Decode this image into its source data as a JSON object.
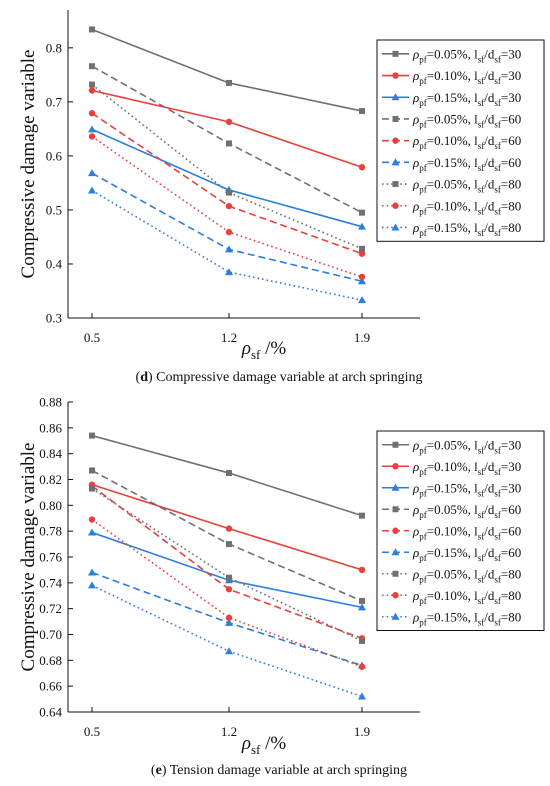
{
  "chart_data": [
    {
      "type": "line",
      "panel": "d",
      "caption_letter": "(d)",
      "caption_text": "Compressive damage variable at arch springing",
      "ylabel": "Compressive damage variable",
      "xlabel": "ρsf /%",
      "x_categories": [
        "0.5",
        "1.2",
        "1.9"
      ],
      "y_ticks": [
        "0.3",
        "0.4",
        "0.5",
        "0.6",
        "0.7",
        "0.8"
      ],
      "ylim": [
        0.3,
        0.87
      ],
      "legend_position": "right",
      "series": [
        {
          "name": "ρpf=0.05%, lsf/dsf=30",
          "color": "#707070",
          "line": "solid",
          "marker": "square",
          "values": [
            0.834,
            0.735,
            0.683
          ]
        },
        {
          "name": "ρpf=0.10%, lsf/dsf=30",
          "color": "#e8403b",
          "line": "solid",
          "marker": "circle",
          "values": [
            0.721,
            0.663,
            0.579
          ]
        },
        {
          "name": "ρpf=0.15%, lsf/dsf=30",
          "color": "#2a7de1",
          "line": "solid",
          "marker": "triangle",
          "values": [
            0.649,
            0.537,
            0.469
          ]
        },
        {
          "name": "ρpf=0.05%, lsf/dsf=60",
          "color": "#707070",
          "line": "dashed",
          "marker": "square",
          "values": [
            0.766,
            0.623,
            0.495
          ]
        },
        {
          "name": "ρpf=0.10%, lsf/dsf=60",
          "color": "#e8403b",
          "line": "dashed",
          "marker": "circle",
          "values": [
            0.679,
            0.507,
            0.419
          ]
        },
        {
          "name": "ρpf=0.15%, lsf/dsf=60",
          "color": "#2a7de1",
          "line": "dashed",
          "marker": "triangle",
          "values": [
            0.568,
            0.427,
            0.368
          ]
        },
        {
          "name": "ρpf=0.05%, lsf/dsf=80",
          "color": "#707070",
          "line": "dotted",
          "marker": "square",
          "values": [
            0.732,
            0.532,
            0.428
          ]
        },
        {
          "name": "ρpf=0.10%, lsf/dsf=80",
          "color": "#e8403b",
          "line": "dotted",
          "marker": "circle",
          "values": [
            0.636,
            0.459,
            0.376
          ]
        },
        {
          "name": "ρpf=0.15%, lsf/dsf=80",
          "color": "#2a7de1",
          "line": "dotted",
          "marker": "triangle",
          "values": [
            0.536,
            0.385,
            0.333
          ]
        }
      ]
    },
    {
      "type": "line",
      "panel": "e",
      "caption_letter": "(e)",
      "caption_text": "Tension damage variable at arch springing",
      "ylabel": "Compressive damage variable",
      "xlabel": "ρsf /%",
      "x_categories": [
        "0.5",
        "1.2",
        "1.9"
      ],
      "y_ticks": [
        "0.64",
        "0.66",
        "0.68",
        "0.70",
        "0.72",
        "0.74",
        "0.76",
        "0.78",
        "0.80",
        "0.82",
        "0.84",
        "0.86",
        "0.88"
      ],
      "ylim": [
        0.64,
        0.88
      ],
      "legend_position": "right",
      "series": [
        {
          "name": "ρpf=0.05%, lsf/dsf=30",
          "color": "#707070",
          "line": "solid",
          "marker": "square",
          "values": [
            0.854,
            0.825,
            0.792
          ]
        },
        {
          "name": "ρpf=0.10%, lsf/dsf=30",
          "color": "#e8403b",
          "line": "solid",
          "marker": "circle",
          "values": [
            0.816,
            0.782,
            0.75
          ]
        },
        {
          "name": "ρpf=0.15%, lsf/dsf=30",
          "color": "#2a7de1",
          "line": "solid",
          "marker": "triangle",
          "values": [
            0.779,
            0.742,
            0.721
          ]
        },
        {
          "name": "ρpf=0.05%, lsf/dsf=60",
          "color": "#707070",
          "line": "dashed",
          "marker": "square",
          "values": [
            0.827,
            0.77,
            0.726
          ]
        },
        {
          "name": "ρpf=0.10%, lsf/dsf=60",
          "color": "#e8403b",
          "line": "dashed",
          "marker": "circle",
          "values": [
            0.815,
            0.735,
            0.697
          ]
        },
        {
          "name": "ρpf=0.15%, lsf/dsf=60",
          "color": "#2a7de1",
          "line": "dashed",
          "marker": "triangle",
          "values": [
            0.748,
            0.709,
            0.676
          ]
        },
        {
          "name": "ρpf=0.05%, lsf/dsf=80",
          "color": "#707070",
          "line": "dotted",
          "marker": "square",
          "values": [
            0.813,
            0.744,
            0.695
          ]
        },
        {
          "name": "ρpf=0.10%, lsf/dsf=80",
          "color": "#e8403b",
          "line": "dotted",
          "marker": "circle",
          "values": [
            0.789,
            0.713,
            0.675
          ]
        },
        {
          "name": "ρpf=0.15%, lsf/dsf=80",
          "color": "#2a7de1",
          "line": "dotted",
          "marker": "triangle",
          "values": [
            0.738,
            0.687,
            0.652
          ]
        }
      ]
    }
  ]
}
